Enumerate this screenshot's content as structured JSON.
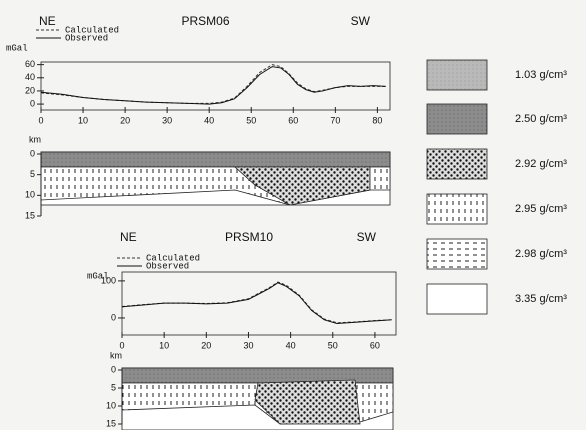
{
  "chart_data": [
    {
      "type": "line",
      "title": "PRSM06",
      "left_label": "NE",
      "right_label": "SW",
      "y_label": "mGal",
      "depth_label": "km",
      "xlim": [
        0,
        83
      ],
      "xticks": [
        0,
        10,
        20,
        30,
        40,
        50,
        60,
        70,
        80
      ],
      "ylim": [
        -9,
        64
      ],
      "yticks": [
        0,
        20,
        40,
        60
      ],
      "depth_ticks": [
        0,
        5,
        10,
        15
      ],
      "series": [
        {
          "name": "Calculated",
          "color": "#333",
          "dash": true,
          "x": [
            0,
            5,
            10,
            15,
            20,
            25,
            30,
            35,
            40,
            43,
            46,
            49,
            52,
            55,
            57,
            59,
            61,
            63,
            65,
            67,
            70,
            73,
            76,
            79,
            82
          ],
          "values": [
            17,
            14,
            10,
            7,
            5,
            3,
            2,
            1,
            1,
            3,
            9,
            27,
            48,
            60,
            57,
            46,
            32,
            23,
            19,
            21,
            25,
            27,
            27,
            27,
            27
          ]
        },
        {
          "name": "Observed",
          "color": "#111",
          "dash": false,
          "x": [
            0,
            5,
            10,
            15,
            20,
            25,
            30,
            35,
            40,
            43,
            46,
            49,
            52,
            55,
            57,
            59,
            61,
            63,
            65,
            67,
            70,
            73,
            76,
            79,
            82
          ],
          "values": [
            18,
            15,
            10,
            7,
            5,
            3,
            2,
            1,
            0,
            2,
            8,
            25,
            45,
            57,
            55,
            45,
            30,
            22,
            18,
            20,
            25,
            28,
            27,
            28,
            27
          ]
        }
      ]
    },
    {
      "type": "line",
      "title": "PRSM10",
      "left_label": "NE",
      "right_label": "SW",
      "y_label": "mGal",
      "depth_label": "km",
      "xlim": [
        0,
        65
      ],
      "xticks": [
        0,
        10,
        20,
        30,
        40,
        50,
        60
      ],
      "ylim": [
        -46,
        124
      ],
      "yticks": [
        0,
        100
      ],
      "depth_ticks": [
        0,
        5,
        10,
        15
      ],
      "series": [
        {
          "name": "Calculated",
          "color": "#333",
          "dash": true,
          "x": [
            0,
            5,
            10,
            15,
            20,
            25,
            30,
            35,
            37,
            39,
            42,
            45,
            48,
            51,
            55,
            60,
            64
          ],
          "values": [
            31,
            36,
            40,
            40,
            39,
            41,
            52,
            82,
            97,
            88,
            62,
            22,
            -3,
            -13,
            -11,
            -7,
            -5
          ]
        },
        {
          "name": "Observed",
          "color": "#111",
          "dash": false,
          "x": [
            0,
            5,
            10,
            15,
            20,
            25,
            30,
            35,
            37,
            39,
            42,
            45,
            48,
            51,
            55,
            60,
            64
          ],
          "values": [
            30,
            35,
            40,
            40,
            38,
            40,
            50,
            80,
            95,
            85,
            60,
            20,
            -5,
            -15,
            -12,
            -8,
            -5
          ]
        }
      ]
    }
  ],
  "legend": [
    {
      "label": "1.03 g/cm³"
    },
    {
      "label": "2.50 g/cm³"
    },
    {
      "label": "2.92 g/cm³"
    },
    {
      "label": "2.95 g/cm³"
    },
    {
      "label": "2.98 g/cm³"
    },
    {
      "label": "3.35 g/cm³"
    }
  ]
}
